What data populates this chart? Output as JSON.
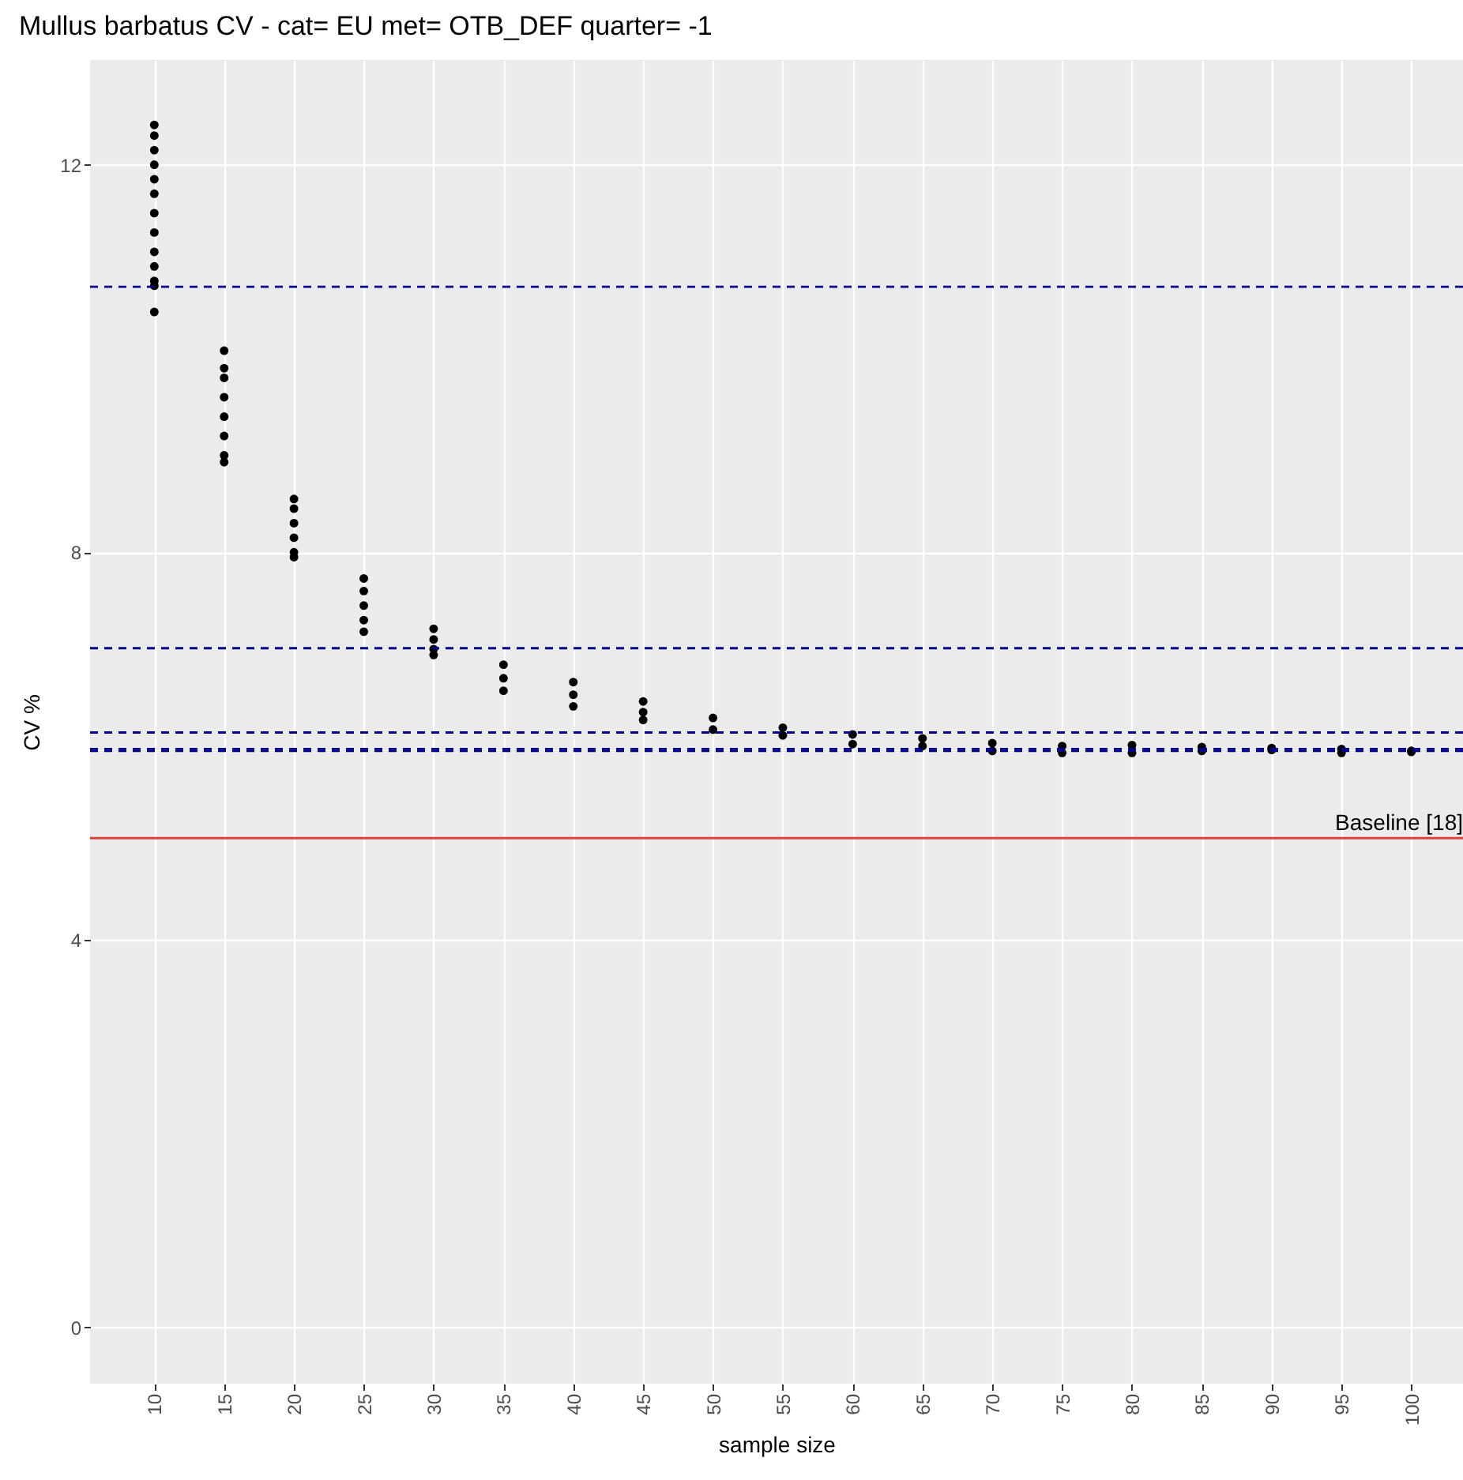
{
  "chart_data": {
    "type": "scatter",
    "title": "Mullus barbatus CV - cat= EU met= OTB_DEF quarter= -1",
    "xlabel": "sample size",
    "ylabel": "CV %",
    "xlim": [
      5.4,
      103.7
    ],
    "ylim": [
      -0.58,
      13.08
    ],
    "xticks": [
      10,
      15,
      20,
      25,
      30,
      35,
      40,
      45,
      50,
      55,
      60,
      65,
      70,
      75,
      80,
      85,
      90,
      95,
      100
    ],
    "yticks": [
      0,
      4,
      8,
      12
    ],
    "grid": true,
    "marker": "circle",
    "series": [
      {
        "color": "#000000",
        "x": [
          10,
          10,
          10,
          10,
          10,
          10,
          10,
          10,
          10,
          10,
          10,
          10,
          10,
          15,
          15,
          15,
          15,
          15,
          15,
          15,
          15,
          20,
          20,
          20,
          20,
          20,
          20,
          25,
          25,
          25,
          25,
          25,
          30,
          30,
          30,
          30,
          35,
          35,
          35,
          40,
          40,
          40,
          45,
          45,
          45,
          50,
          50,
          55,
          55,
          60,
          60,
          65,
          65,
          70,
          70,
          75,
          75,
          80,
          80,
          85,
          85,
          90,
          90,
          95,
          95,
          100,
          100
        ],
        "values": [
          12.41,
          12.3,
          12.15,
          12.0,
          11.85,
          11.7,
          11.5,
          11.3,
          11.1,
          10.95,
          10.8,
          10.75,
          10.48,
          10.08,
          9.9,
          9.8,
          9.6,
          9.4,
          9.2,
          9.0,
          8.93,
          8.55,
          8.45,
          8.3,
          8.15,
          8.0,
          7.95,
          7.73,
          7.6,
          7.45,
          7.3,
          7.18,
          7.21,
          7.1,
          7.0,
          6.94,
          6.84,
          6.7,
          6.57,
          6.66,
          6.53,
          6.41,
          6.46,
          6.35,
          6.27,
          6.29,
          6.17,
          6.19,
          6.11,
          6.12,
          6.02,
          6.08,
          6.0,
          6.03,
          5.95,
          6.0,
          5.93,
          6.01,
          5.93,
          5.99,
          5.95,
          5.98,
          5.96,
          5.97,
          5.93,
          5.95,
          5.94
        ]
      }
    ],
    "ref_lines": [
      {
        "axis": "y",
        "value": 10.74,
        "color": "#00008b",
        "line_style": "dashed"
      },
      {
        "axis": "y",
        "value": 7.01,
        "color": "#00008b",
        "line_style": "dashed"
      },
      {
        "axis": "y",
        "value": 6.14,
        "color": "#00008b",
        "line_style": "dashed"
      },
      {
        "axis": "y",
        "value": 5.97,
        "color": "#00008b",
        "line_style": "dashed"
      },
      {
        "axis": "y",
        "value": 5.95,
        "color": "#00008b",
        "line_style": "dashed"
      },
      {
        "axis": "y",
        "value": 5.05,
        "label": "Baseline [18]",
        "color": "#e0403a",
        "line_style": "solid"
      }
    ]
  }
}
